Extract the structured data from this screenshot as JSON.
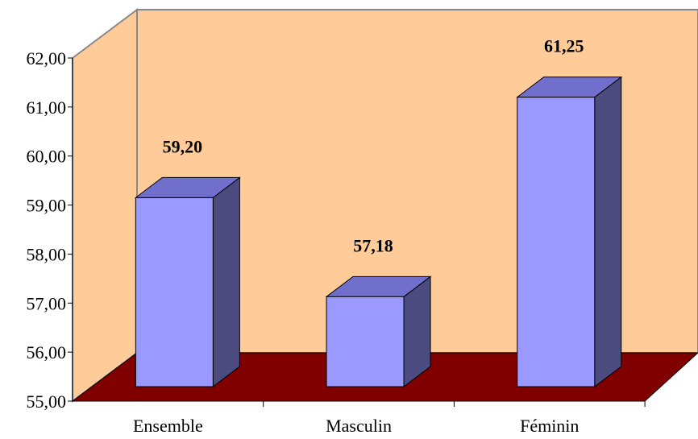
{
  "chart_data": {
    "type": "bar",
    "style": "3d-column",
    "categories": [
      "Ensemble",
      "Masculin",
      "Féminin"
    ],
    "values": [
      59.2,
      57.18,
      61.25
    ],
    "value_labels": [
      "59,20",
      "57,18",
      "61,25"
    ],
    "yticks": [
      "55,00",
      "56,00",
      "57,00",
      "58,00",
      "59,00",
      "60,00",
      "61,00",
      "62,00"
    ],
    "ylim": [
      55,
      62
    ],
    "grid": false,
    "legend": "none",
    "colors": {
      "wall": "#FFCC99",
      "floor": "#800000",
      "bar_front": "#9999FF",
      "bar_top": "#7070CC",
      "bar_side": "#4B4B7F"
    }
  }
}
